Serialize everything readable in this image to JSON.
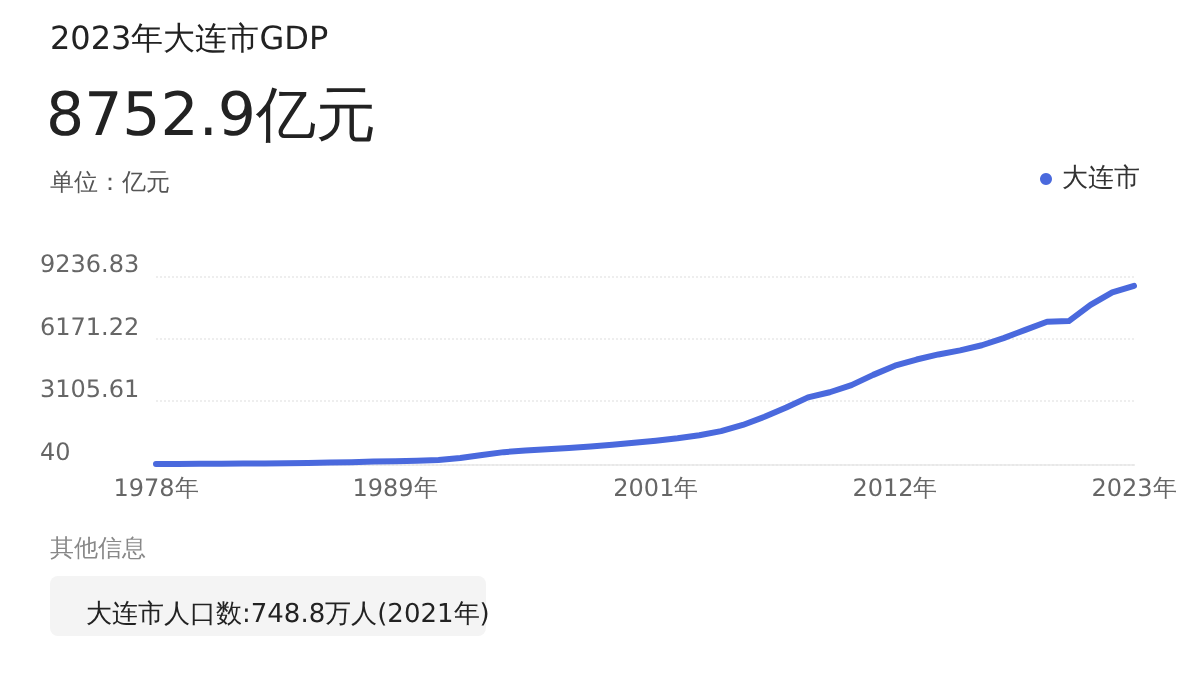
{
  "chart_data": {
    "type": "line",
    "title": "2023年大连市GDP",
    "subtitle": "8752.9亿元",
    "ylabel": "单位：亿元",
    "categories": [
      "1978年",
      null,
      null,
      null,
      null,
      null,
      null,
      null,
      null,
      null,
      null,
      "1989年",
      null,
      null,
      null,
      null,
      null,
      null,
      null,
      null,
      null,
      null,
      null,
      "2001年",
      null,
      null,
      null,
      null,
      null,
      null,
      null,
      null,
      null,
      null,
      "2012年",
      null,
      null,
      null,
      null,
      null,
      null,
      null,
      null,
      null,
      null,
      "2023年"
    ],
    "series": [
      {
        "name": "大连市",
        "color": "#4a69dd",
        "values": [
          42,
          45,
          50,
          55,
          60,
          68,
          80,
          95,
          110,
          130,
          160,
          180,
          200,
          240,
          330,
          480,
          620,
          700,
          760,
          820,
          900,
          980,
          1080,
          1180,
          1300,
          1450,
          1650,
          1950,
          2350,
          2800,
          3300,
          3550,
          3900,
          4400,
          4850,
          5150,
          5400,
          5600,
          5850,
          6200,
          6600,
          7000,
          7030,
          7826,
          8431,
          8752.9
        ]
      }
    ],
    "ylim": [
      40,
      9236.83
    ],
    "yticks": [
      40,
      3105.61,
      6171.22,
      9236.83
    ],
    "grid": "y",
    "legend": "top right",
    "marker": "none",
    "line_style": "solid",
    "annotations": [
      "其他信息",
      "大连市人口数:748.8万人(2021年)"
    ]
  }
}
